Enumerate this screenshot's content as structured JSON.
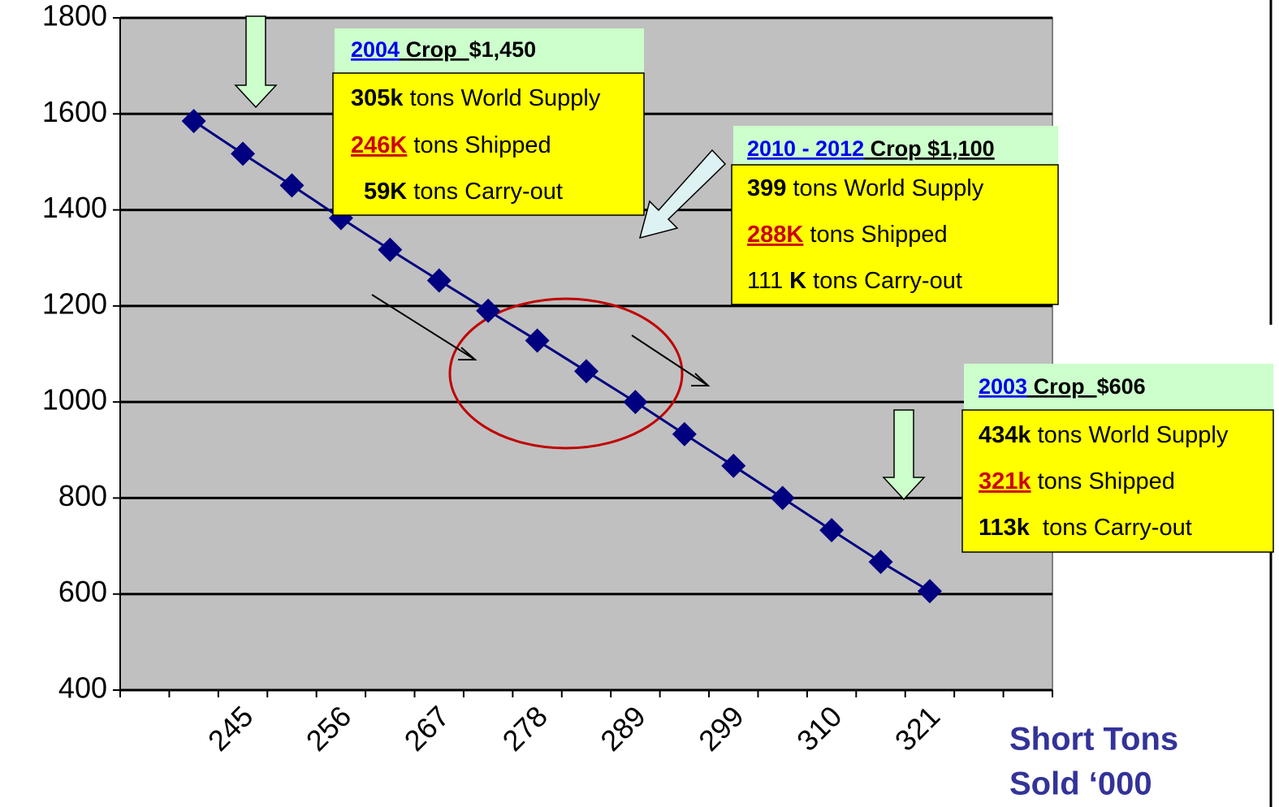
{
  "chart_data": {
    "type": "line",
    "categories": [
      null,
      null,
      "245",
      null,
      "256",
      null,
      "267",
      null,
      "278",
      null,
      "289",
      null,
      "299",
      null,
      "310",
      null,
      "321",
      null,
      null
    ],
    "series": [
      {
        "color": "#000080",
        "values": [
          null,
          1585,
          1517,
          1451,
          1383,
          1317,
          1253,
          1190,
          1128,
          1064,
          1000,
          933,
          867,
          800,
          733,
          667,
          606,
          null,
          null
        ]
      }
    ],
    "ylim": [
      400,
      1800
    ],
    "yticks": [
      400,
      600,
      800,
      1000,
      1200,
      1400,
      1600,
      1800
    ],
    "grid": true,
    "x_label": [
      "Short Tons",
      "Sold ‘000"
    ],
    "annotations": [
      {
        "header": [
          {
            "text": "2004",
            "style": "link"
          },
          {
            "text": " Crop  ",
            "style": "bold-underline"
          },
          {
            "text": "$1,450",
            "style": "bold"
          }
        ],
        "lines": [
          [
            {
              "text": "305k",
              "style": "bold"
            },
            {
              "text": " tons World Supply",
              "style": "plain"
            }
          ],
          [
            {
              "text": "246K",
              "style": "red"
            },
            {
              "text": " tons Shipped",
              "style": "plain"
            }
          ],
          [
            {
              "text": "59K",
              "style": "bold"
            },
            {
              "text": " tons Carry-out",
              "style": "plain"
            }
          ]
        ]
      },
      {
        "header": [
          {
            "text": "2010 - 2012",
            "style": "link"
          },
          {
            "text": " Crop $1,100",
            "style": "bold-underline"
          }
        ],
        "lines": [
          [
            {
              "text": "399",
              "style": "bold"
            },
            {
              "text": " tons World Supply",
              "style": "plain"
            }
          ],
          [
            {
              "text": "288K",
              "style": "red"
            },
            {
              "text": " tons Shipped",
              "style": "plain"
            }
          ],
          [
            {
              "text": "111 ",
              "style": "plain"
            },
            {
              "text": "K",
              "style": "bold"
            },
            {
              "text": " tons Carry-out",
              "style": "plain"
            }
          ]
        ]
      },
      {
        "header": [
          {
            "text": "2003",
            "style": "link"
          },
          {
            "text": " Crop  ",
            "style": "bold-underline"
          },
          {
            "text": "$606",
            "style": "bold"
          }
        ],
        "lines": [
          [
            {
              "text": "434k",
              "style": "bold"
            },
            {
              "text": " tons World Supply",
              "style": "plain"
            }
          ],
          [
            {
              "text": "321k",
              "style": "red"
            },
            {
              "text": " tons Shipped",
              "style": "plain"
            }
          ],
          [
            {
              "text": "113k",
              "style": "bold"
            },
            {
              "text": "  tons Carry-out",
              "style": "plain"
            }
          ]
        ]
      }
    ]
  }
}
